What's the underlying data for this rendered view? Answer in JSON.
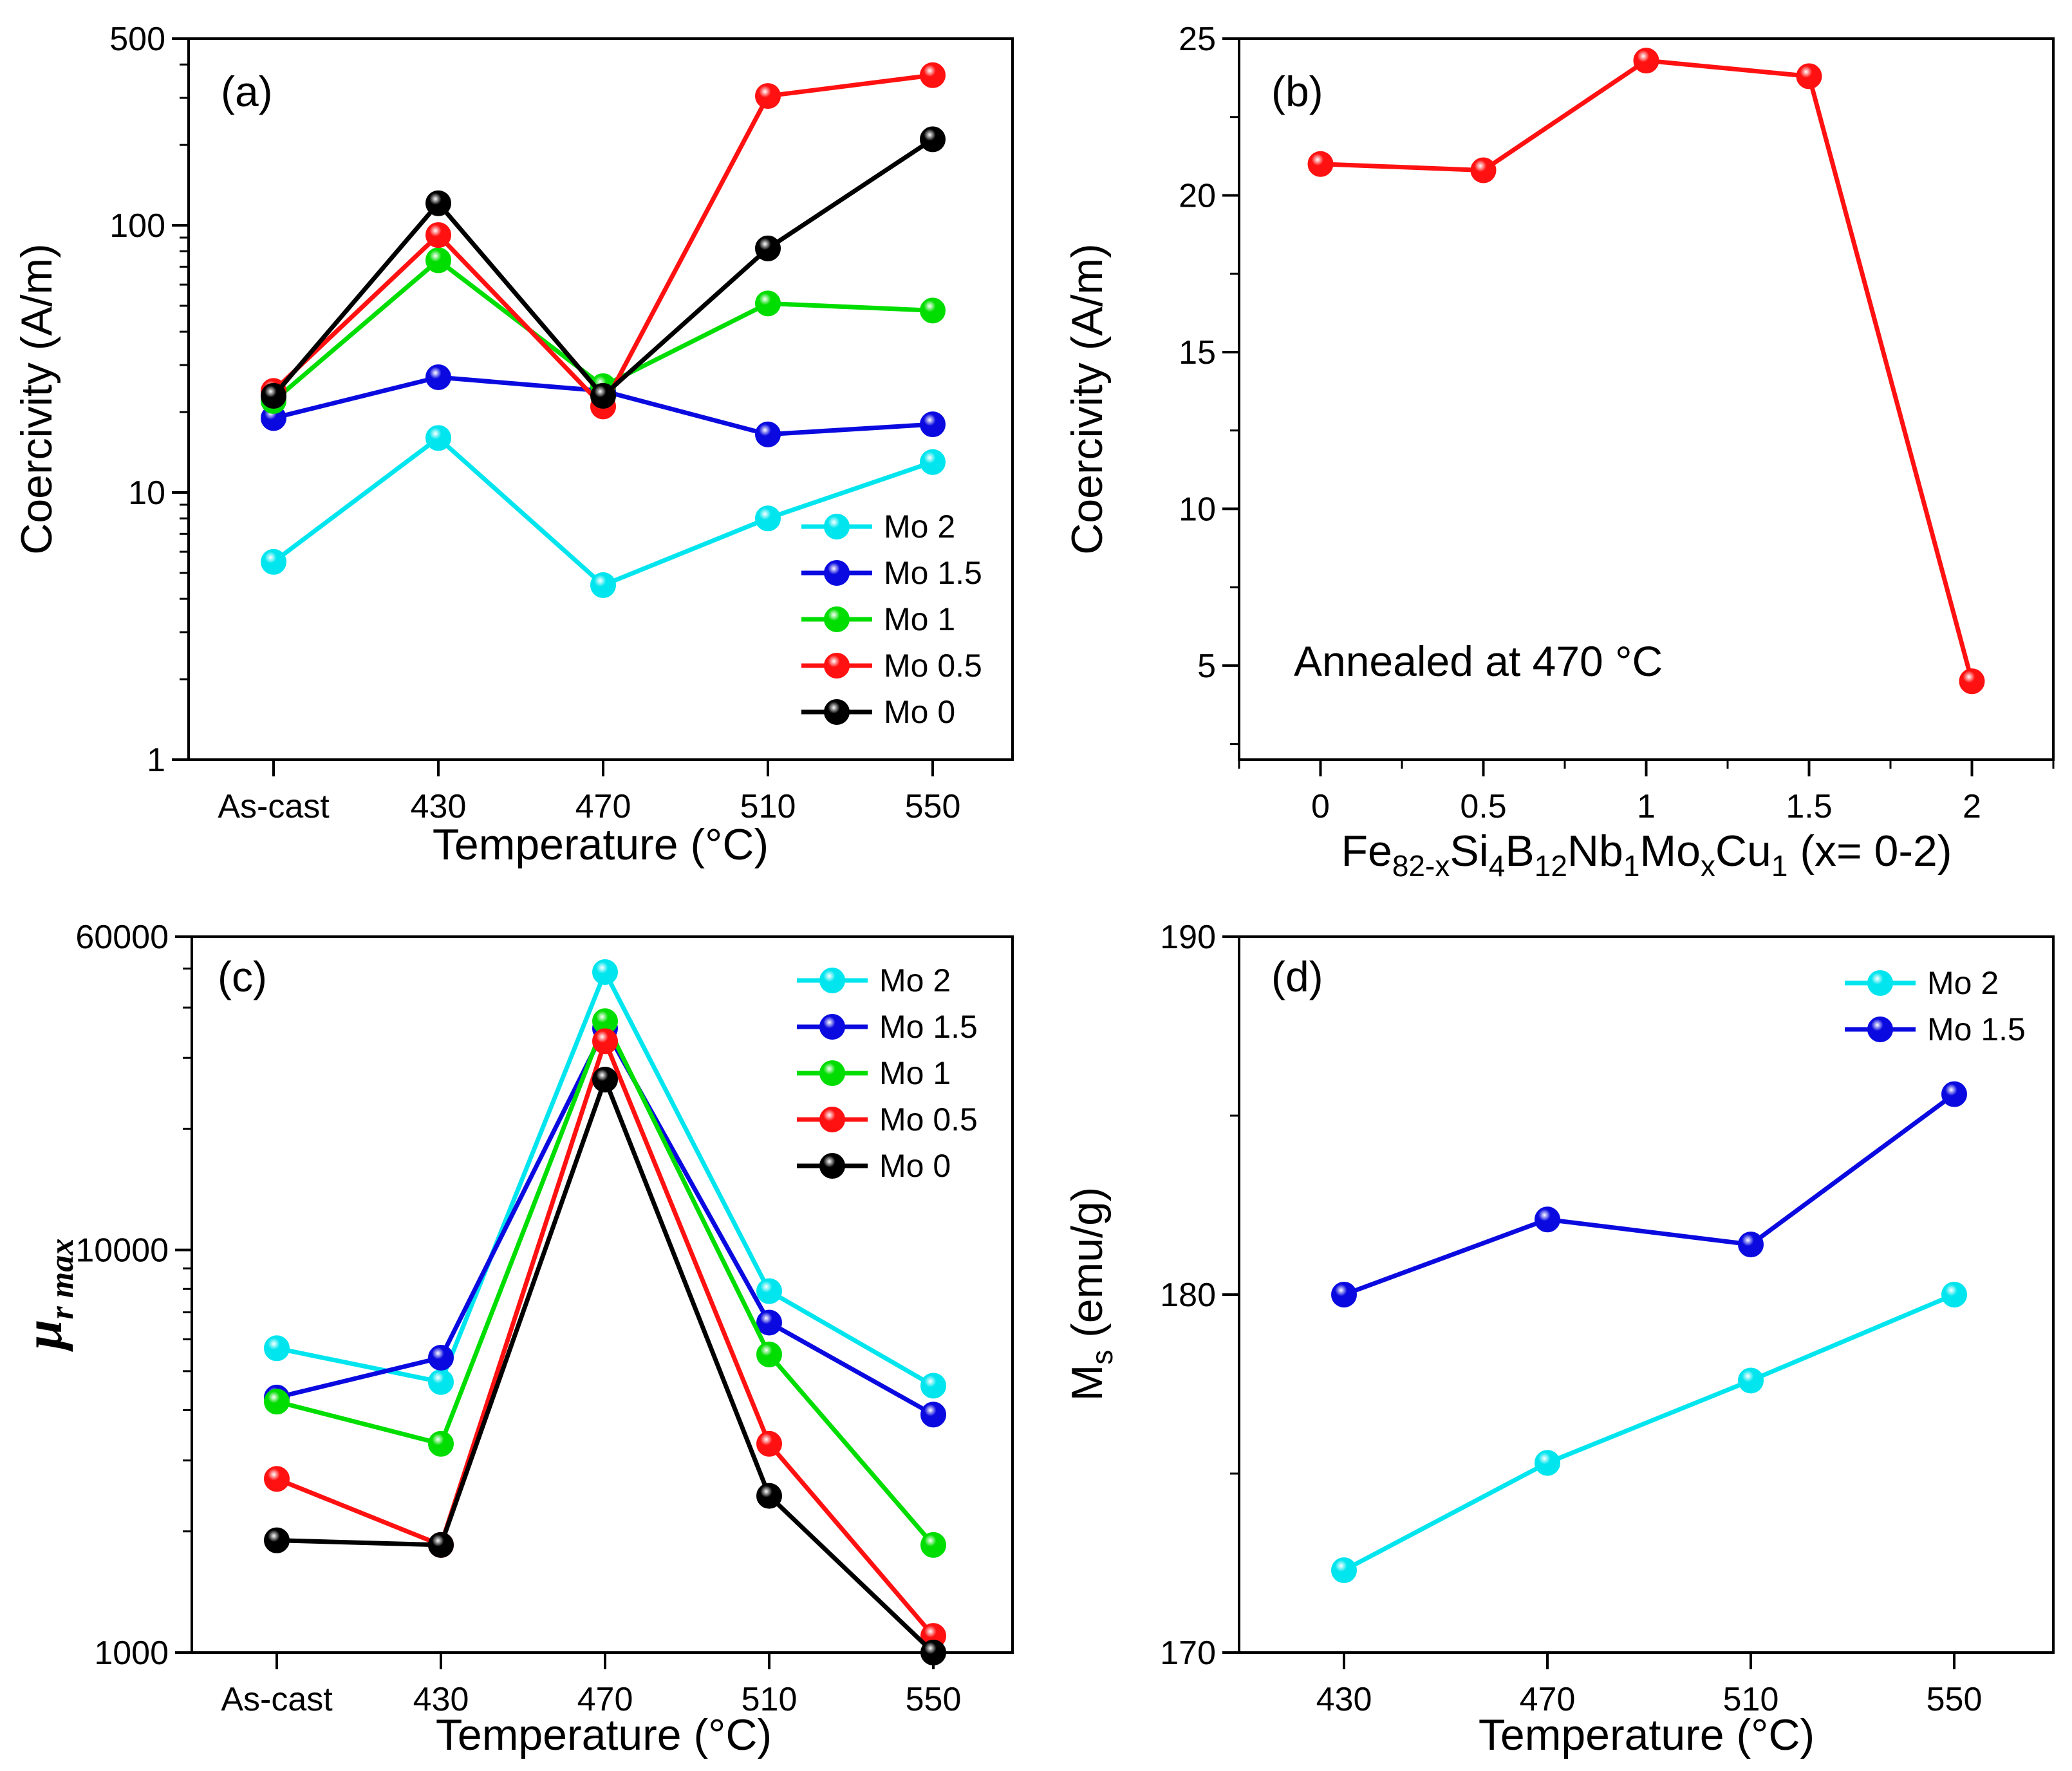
{
  "chart_data": [
    {
      "panel": "(a)",
      "type": "line",
      "yscale": "log",
      "categories": [
        "As-cast",
        "430",
        "470",
        "510",
        "550"
      ],
      "ylim": [
        1,
        500
      ],
      "yticks": [
        1,
        10,
        100,
        500
      ],
      "ytick_labels": [
        "1",
        "10",
        "100",
        "500"
      ],
      "xlabel": "Temperature (°C)",
      "ylabel": "Coercivity (A/m)",
      "legend": "bottom-right",
      "series": [
        {
          "name": "Mo 2",
          "color": "#00e5ee",
          "values": [
            5.5,
            16,
            4.5,
            8,
            13
          ]
        },
        {
          "name": "Mo 1.5",
          "color": "#0a0ae0",
          "values": [
            19,
            27,
            24,
            16.5,
            18
          ]
        },
        {
          "name": "Mo 1",
          "color": "#00dd00",
          "values": [
            22,
            74,
            25,
            51,
            48
          ]
        },
        {
          "name": "Mo 0.5",
          "color": "#ff1111",
          "values": [
            24,
            92,
            21,
            305,
            365
          ]
        },
        {
          "name": "Mo 0",
          "color": "#000000",
          "values": [
            23,
            121,
            23,
            82,
            210
          ]
        }
      ]
    },
    {
      "panel": "(b)",
      "type": "line",
      "x": [
        0,
        0.5,
        1,
        1.5,
        2
      ],
      "xticks": [
        0,
        0.5,
        1,
        1.5,
        2
      ],
      "xtick_labels": [
        "0",
        "0.5",
        "1",
        "1.5",
        "2"
      ],
      "xlim": [
        -0.25,
        2.25
      ],
      "ylim": [
        2,
        25
      ],
      "yticks": [
        5,
        10,
        15,
        20,
        25
      ],
      "ytick_labels": [
        "5",
        "10",
        "15",
        "20",
        "25"
      ],
      "xlabel": {
        "parts": [
          "Fe",
          "82-x",
          "Si",
          "4",
          "B",
          "12",
          "Nb",
          "1",
          "Mo",
          "x",
          "Cu",
          "1",
          " (x= 0-2)"
        ]
      },
      "ylabel": "Coercivity (A/m)",
      "annotation": "Annealed at 470 °C",
      "series": [
        {
          "name": "Annealed at 470 °C",
          "color": "#ff1111",
          "values": [
            21,
            20.8,
            24.3,
            23.8,
            4.5
          ]
        }
      ]
    },
    {
      "panel": "(c)",
      "type": "line",
      "yscale": "log",
      "categories": [
        "As-cast",
        "430",
        "470",
        "510",
        "550"
      ],
      "ylim": [
        1000,
        60000
      ],
      "yticks": [
        1000,
        10000,
        60000
      ],
      "ytick_labels": [
        "1000",
        "10000",
        "60000"
      ],
      "xlabel": "Temperature (°C)",
      "ylabel": {
        "mu": "μ",
        "sub": "r max"
      },
      "legend": "top-right",
      "series": [
        {
          "name": "Mo 2",
          "color": "#00e5ee",
          "values": [
            5700,
            4700,
            49000,
            7900,
            4600
          ]
        },
        {
          "name": "Mo 1.5",
          "color": "#0a0ae0",
          "values": [
            4300,
            5400,
            35500,
            6600,
            3900
          ]
        },
        {
          "name": "Mo 1",
          "color": "#00dd00",
          "values": [
            4200,
            3300,
            37000,
            5500,
            1850
          ]
        },
        {
          "name": "Mo 0.5",
          "color": "#ff1111",
          "values": [
            2700,
            1850,
            33000,
            3300,
            1100
          ]
        },
        {
          "name": "Mo 0",
          "color": "#000000",
          "values": [
            1900,
            1850,
            26500,
            2450,
            1000
          ]
        }
      ]
    },
    {
      "panel": "(d)",
      "type": "line",
      "categories": [
        "430",
        "470",
        "510",
        "550"
      ],
      "ylim": [
        170,
        190
      ],
      "yticks": [
        170,
        180,
        190
      ],
      "ytick_labels": [
        "170",
        "180",
        "190"
      ],
      "xlabel": "Temperature (°C)",
      "ylabel": {
        "main": "M",
        "sub": "s",
        "rest": " (emu/g)"
      },
      "legend": "top-right",
      "series": [
        {
          "name": "Mo 2",
          "color": "#00e5ee",
          "values": [
            172.3,
            175.3,
            177.6,
            180
          ]
        },
        {
          "name": "Mo 1.5",
          "color": "#0a0ae0",
          "values": [
            180,
            182.1,
            181.4,
            185.6
          ]
        }
      ]
    }
  ]
}
